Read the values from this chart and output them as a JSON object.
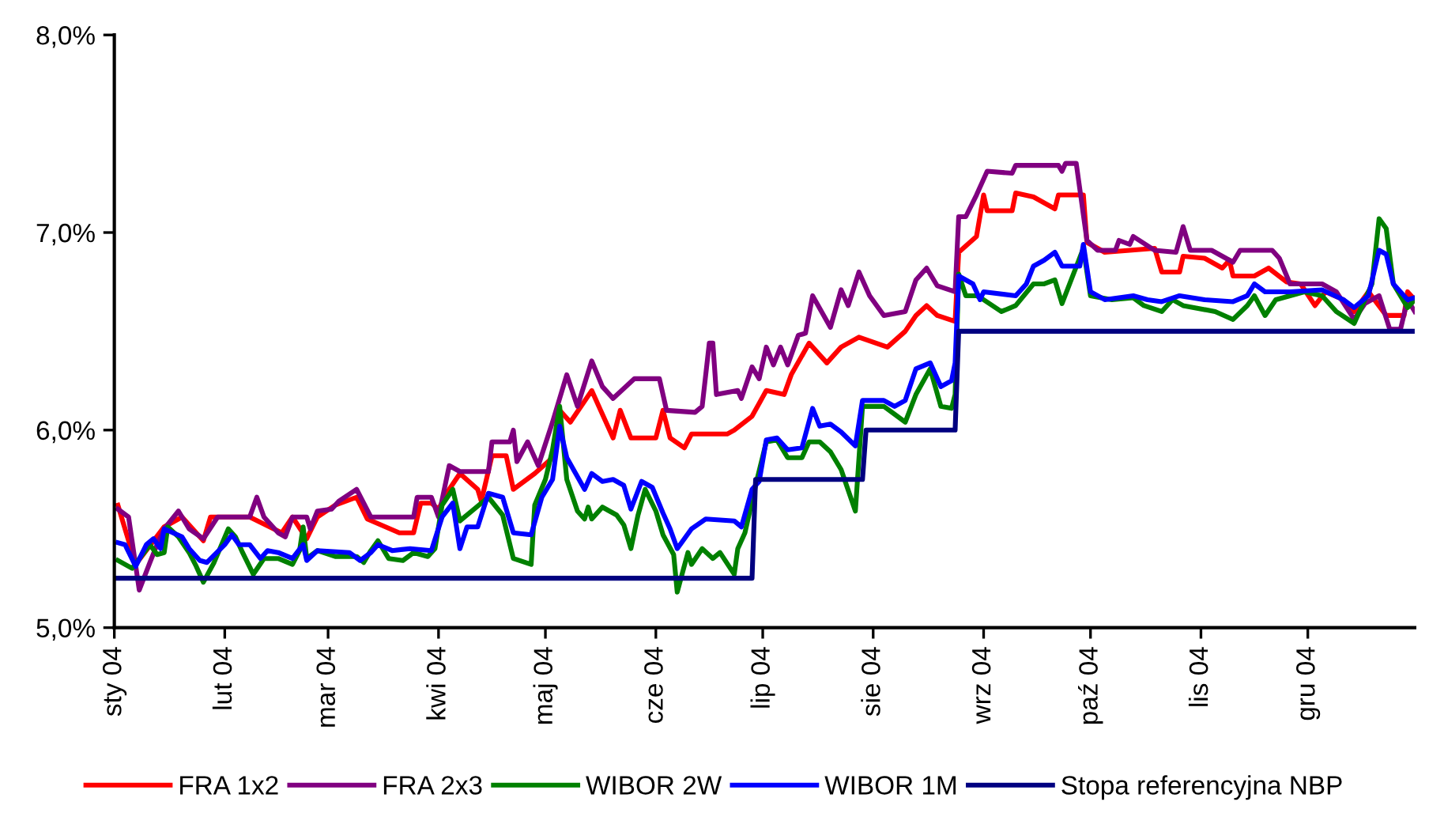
{
  "chart_data": {
    "type": "line",
    "legend": "bottom",
    "line_style": "solid",
    "grid": false,
    "ylim": [
      5.0,
      8.0
    ],
    "yticks": [
      {
        "value": 5.0,
        "label": "5,0%"
      },
      {
        "value": 6.0,
        "label": "6,0%"
      },
      {
        "value": 7.0,
        "label": "7,0%"
      },
      {
        "value": 8.0,
        "label": "8,0%"
      }
    ],
    "xlim": [
      "2004-01-01",
      "2004-12-31"
    ],
    "xticks": [
      {
        "value": "2004-01-01",
        "label": "sty 04"
      },
      {
        "value": "2004-02-01",
        "label": "lut 04"
      },
      {
        "value": "2004-03-01",
        "label": "mar 04"
      },
      {
        "value": "2004-04-01",
        "label": "kwi 04"
      },
      {
        "value": "2004-05-01",
        "label": "maj 04"
      },
      {
        "value": "2004-06-01",
        "label": "cze 04"
      },
      {
        "value": "2004-07-01",
        "label": "lip 04"
      },
      {
        "value": "2004-08-01",
        "label": "sie 04"
      },
      {
        "value": "2004-09-01",
        "label": "wrz 04"
      },
      {
        "value": "2004-10-01",
        "label": "paź 04"
      },
      {
        "value": "2004-11-01",
        "label": "lis 04"
      },
      {
        "value": "2004-12-01",
        "label": "gru 04"
      }
    ],
    "series": [
      {
        "name": "FRA 1x2",
        "color": "#ff0000",
        "x": [
          "2004-01-02",
          "2004-01-07",
          "2004-01-15",
          "2004-01-20",
          "2004-01-26",
          "2004-01-28",
          "2004-02-08",
          "2004-02-17",
          "2004-02-20",
          "2004-02-24",
          "2004-02-27",
          "2004-03-03",
          "2004-03-09",
          "2004-03-12",
          "2004-03-21",
          "2004-03-25",
          "2004-03-27",
          "2004-03-30",
          "2004-04-01",
          "2004-04-04",
          "2004-04-07",
          "2004-04-12",
          "2004-04-13",
          "2004-04-16",
          "2004-04-20",
          "2004-04-22",
          "2004-04-28",
          "2004-05-03",
          "2004-05-05",
          "2004-05-08",
          "2004-05-14",
          "2004-05-20",
          "2004-05-22",
          "2004-05-25",
          "2004-06-01",
          "2004-06-03",
          "2004-06-05",
          "2004-06-09",
          "2004-06-11",
          "2004-06-21",
          "2004-06-23",
          "2004-06-28",
          "2004-07-02",
          "2004-07-07",
          "2004-07-09",
          "2004-07-14",
          "2004-07-19",
          "2004-07-23",
          "2004-07-28",
          "2004-08-05",
          "2004-08-10",
          "2004-08-13",
          "2004-08-16",
          "2004-08-19",
          "2004-08-24",
          "2004-08-25",
          "2004-08-30",
          "2004-09-01",
          "2004-09-02",
          "2004-09-09",
          "2004-09-10",
          "2004-09-15",
          "2004-09-21",
          "2004-09-22",
          "2004-09-29",
          "2004-09-30",
          "2004-10-05",
          "2004-10-19",
          "2004-10-21",
          "2004-10-26",
          "2004-10-27",
          "2004-11-02",
          "2004-11-07",
          "2004-11-09",
          "2004-11-10",
          "2004-11-16",
          "2004-11-20",
          "2004-11-25",
          "2004-11-29",
          "2004-12-03",
          "2004-12-06",
          "2004-12-11",
          "2004-12-14",
          "2004-12-18",
          "2004-12-23",
          "2004-12-28",
          "2004-12-29",
          "2004-12-31"
        ],
        "values": [
          5.62,
          5.32,
          5.51,
          5.56,
          5.44,
          5.56,
          5.56,
          5.48,
          5.56,
          5.45,
          5.56,
          5.62,
          5.66,
          5.55,
          5.48,
          5.48,
          5.63,
          5.63,
          5.6,
          5.7,
          5.78,
          5.7,
          5.64,
          5.87,
          5.87,
          5.7,
          5.78,
          5.86,
          6.1,
          6.04,
          6.2,
          5.96,
          6.1,
          5.96,
          5.96,
          6.1,
          5.96,
          5.91,
          5.98,
          5.98,
          6.0,
          6.07,
          6.2,
          6.18,
          6.28,
          6.44,
          6.34,
          6.42,
          6.47,
          6.42,
          6.5,
          6.58,
          6.63,
          6.58,
          6.55,
          6.9,
          6.98,
          7.19,
          7.11,
          7.11,
          7.2,
          7.18,
          7.12,
          7.19,
          7.19,
          6.95,
          6.9,
          6.92,
          6.8,
          6.8,
          6.88,
          6.87,
          6.82,
          6.86,
          6.78,
          6.78,
          6.82,
          6.75,
          6.74,
          6.63,
          6.7,
          6.66,
          6.6,
          6.7,
          6.58,
          6.58,
          6.7,
          6.66
        ]
      },
      {
        "name": "FRA 2x3",
        "color": "#800080",
        "x": [
          "2004-01-02",
          "2004-01-05",
          "2004-01-08",
          "2004-01-11",
          "2004-01-13",
          "2004-01-15",
          "2004-01-19",
          "2004-01-22",
          "2004-01-26",
          "2004-01-30",
          "2004-02-08",
          "2004-02-10",
          "2004-02-12",
          "2004-02-16",
          "2004-02-18",
          "2004-02-20",
          "2004-02-24",
          "2004-02-25",
          "2004-02-27",
          "2004-03-02",
          "2004-03-04",
          "2004-03-09",
          "2004-03-13",
          "2004-03-25",
          "2004-03-26",
          "2004-03-30",
          "2004-04-01",
          "2004-04-04",
          "2004-04-07",
          "2004-04-15",
          "2004-04-16",
          "2004-04-21",
          "2004-04-22",
          "2004-04-23",
          "2004-04-26",
          "2004-04-29",
          "2004-05-03",
          "2004-05-07",
          "2004-05-10",
          "2004-05-14",
          "2004-05-17",
          "2004-05-20",
          "2004-05-26",
          "2004-06-02",
          "2004-06-04",
          "2004-06-12",
          "2004-06-14",
          "2004-06-16",
          "2004-06-17",
          "2004-06-18",
          "2004-06-24",
          "2004-06-25",
          "2004-06-28",
          "2004-06-30",
          "2004-07-02",
          "2004-07-04",
          "2004-07-06",
          "2004-07-08",
          "2004-07-11",
          "2004-07-13",
          "2004-07-15",
          "2004-07-20",
          "2004-07-23",
          "2004-07-25",
          "2004-07-28",
          "2004-07-31",
          "2004-08-04",
          "2004-08-10",
          "2004-08-13",
          "2004-08-16",
          "2004-08-19",
          "2004-08-24",
          "2004-08-25",
          "2004-08-27",
          "2004-08-30",
          "2004-09-02",
          "2004-09-09",
          "2004-09-10",
          "2004-09-22",
          "2004-09-23",
          "2004-09-24",
          "2004-09-27",
          "2004-09-30",
          "2004-10-03",
          "2004-10-08",
          "2004-10-09",
          "2004-10-12",
          "2004-10-13",
          "2004-10-19",
          "2004-10-25",
          "2004-10-27",
          "2004-10-29",
          "2004-11-04",
          "2004-11-08",
          "2004-11-10",
          "2004-11-12",
          "2004-11-21",
          "2004-11-23",
          "2004-11-26",
          "2004-12-05",
          "2004-12-09",
          "2004-12-14",
          "2004-12-17",
          "2004-12-21",
          "2004-12-24",
          "2004-12-27",
          "2004-12-29",
          "2004-12-31"
        ],
        "values": [
          5.6,
          5.56,
          5.19,
          5.33,
          5.42,
          5.5,
          5.59,
          5.5,
          5.45,
          5.56,
          5.56,
          5.66,
          5.56,
          5.48,
          5.46,
          5.56,
          5.56,
          5.5,
          5.59,
          5.6,
          5.64,
          5.7,
          5.56,
          5.56,
          5.66,
          5.66,
          5.56,
          5.82,
          5.79,
          5.79,
          5.94,
          5.94,
          6.0,
          5.84,
          5.94,
          5.82,
          6.04,
          6.28,
          6.12,
          6.35,
          6.22,
          6.16,
          6.26,
          6.26,
          6.1,
          6.09,
          6.12,
          6.44,
          6.44,
          6.18,
          6.2,
          6.16,
          6.32,
          6.26,
          6.42,
          6.33,
          6.42,
          6.33,
          6.48,
          6.49,
          6.68,
          6.52,
          6.71,
          6.63,
          6.8,
          6.68,
          6.58,
          6.6,
          6.76,
          6.82,
          6.73,
          6.7,
          7.08,
          7.08,
          7.19,
          7.31,
          7.3,
          7.34,
          7.34,
          7.31,
          7.35,
          7.35,
          6.96,
          6.91,
          6.91,
          6.96,
          6.94,
          6.98,
          6.91,
          6.9,
          7.03,
          6.91,
          6.91,
          6.87,
          6.85,
          6.91,
          6.91,
          6.87,
          6.74,
          6.74,
          6.7,
          6.56,
          6.64,
          6.68,
          6.51,
          6.51,
          6.66,
          6.6
        ]
      },
      {
        "name": "WIBOR 2W",
        "color": "#008000",
        "x": [
          "2004-01-02",
          "2004-01-06",
          "2004-01-11",
          "2004-01-13",
          "2004-01-15",
          "2004-01-16",
          "2004-01-19",
          "2004-01-22",
          "2004-01-24",
          "2004-01-26",
          "2004-01-29",
          "2004-02-02",
          "2004-02-04",
          "2004-02-06",
          "2004-02-09",
          "2004-02-12",
          "2004-02-16",
          "2004-02-20",
          "2004-02-22",
          "2004-02-23",
          "2004-02-24",
          "2004-02-27",
          "2004-03-03",
          "2004-03-09",
          "2004-03-11",
          "2004-03-13",
          "2004-03-15",
          "2004-03-18",
          "2004-03-22",
          "2004-03-25",
          "2004-03-29",
          "2004-03-31",
          "2004-04-02",
          "2004-04-05",
          "2004-04-07",
          "2004-04-15",
          "2004-04-19",
          "2004-04-22",
          "2004-04-27",
          "2004-04-28",
          "2004-05-01",
          "2004-05-03",
          "2004-05-05",
          "2004-05-07",
          "2004-05-10",
          "2004-05-12",
          "2004-05-13",
          "2004-05-14",
          "2004-05-17",
          "2004-05-21",
          "2004-05-23",
          "2004-05-25",
          "2004-05-27",
          "2004-05-29",
          "2004-06-01",
          "2004-06-03",
          "2004-06-06",
          "2004-06-07",
          "2004-06-10",
          "2004-06-11",
          "2004-06-14",
          "2004-06-17",
          "2004-06-19",
          "2004-06-23",
          "2004-06-24",
          "2004-06-26",
          "2004-06-29",
          "2004-07-02",
          "2004-07-05",
          "2004-07-08",
          "2004-07-12",
          "2004-07-14",
          "2004-07-17",
          "2004-07-20",
          "2004-07-23",
          "2004-07-27",
          "2004-07-29",
          "2004-08-04",
          "2004-08-07",
          "2004-08-10",
          "2004-08-13",
          "2004-08-17",
          "2004-08-20",
          "2004-08-23",
          "2004-08-24",
          "2004-08-25",
          "2004-08-27",
          "2004-08-30",
          "2004-09-01",
          "2004-09-06",
          "2004-09-10",
          "2004-09-15",
          "2004-09-18",
          "2004-09-21",
          "2004-09-23",
          "2004-09-29",
          "2004-10-01",
          "2004-10-07",
          "2004-10-13",
          "2004-10-16",
          "2004-10-21",
          "2004-10-24",
          "2004-10-27",
          "2004-11-05",
          "2004-11-10",
          "2004-11-14",
          "2004-11-16",
          "2004-11-19",
          "2004-11-22",
          "2004-11-30",
          "2004-12-05",
          "2004-12-09",
          "2004-12-14",
          "2004-12-19",
          "2004-12-21",
          "2004-12-23",
          "2004-12-25",
          "2004-12-29",
          "2004-12-31"
        ],
        "values": [
          5.34,
          5.3,
          5.42,
          5.37,
          5.38,
          5.51,
          5.46,
          5.38,
          5.31,
          5.23,
          5.33,
          5.5,
          5.46,
          5.38,
          5.27,
          5.35,
          5.35,
          5.32,
          5.39,
          5.51,
          5.35,
          5.39,
          5.36,
          5.36,
          5.33,
          5.39,
          5.44,
          5.35,
          5.34,
          5.38,
          5.36,
          5.4,
          5.62,
          5.7,
          5.54,
          5.66,
          5.57,
          5.35,
          5.32,
          5.62,
          5.75,
          5.9,
          6.12,
          5.75,
          5.59,
          5.55,
          5.61,
          5.55,
          5.61,
          5.57,
          5.52,
          5.4,
          5.57,
          5.7,
          5.59,
          5.47,
          5.37,
          5.18,
          5.38,
          5.32,
          5.4,
          5.35,
          5.38,
          5.27,
          5.4,
          5.48,
          5.72,
          5.94,
          5.95,
          5.86,
          5.86,
          5.94,
          5.94,
          5.89,
          5.8,
          5.59,
          6.12,
          6.12,
          6.08,
          6.04,
          6.18,
          6.31,
          6.12,
          6.11,
          6.18,
          6.79,
          6.68,
          6.68,
          6.66,
          6.6,
          6.63,
          6.74,
          6.74,
          6.76,
          6.64,
          6.92,
          6.68,
          6.66,
          6.67,
          6.63,
          6.6,
          6.66,
          6.63,
          6.6,
          6.56,
          6.63,
          6.68,
          6.58,
          6.66,
          6.7,
          6.68,
          6.6,
          6.54,
          6.74,
          7.07,
          7.02,
          6.74,
          6.62,
          6.66
        ]
      },
      {
        "name": "WIBOR 1M",
        "color": "#0000ff",
        "x": [
          "2004-01-02",
          "2004-01-04",
          "2004-01-07",
          "2004-01-10",
          "2004-01-12",
          "2004-01-14",
          "2004-01-15",
          "2004-01-20",
          "2004-01-22",
          "2004-01-25",
          "2004-01-27",
          "2004-02-01",
          "2004-02-03",
          "2004-02-05",
          "2004-02-08",
          "2004-02-11",
          "2004-02-13",
          "2004-02-16",
          "2004-02-20",
          "2004-02-23",
          "2004-02-24",
          "2004-02-27",
          "2004-03-07",
          "2004-03-10",
          "2004-03-13",
          "2004-03-15",
          "2004-03-19",
          "2004-03-24",
          "2004-03-30",
          "2004-04-02",
          "2004-04-05",
          "2004-04-07",
          "2004-04-09",
          "2004-04-12",
          "2004-04-15",
          "2004-04-19",
          "2004-04-22",
          "2004-04-27",
          "2004-04-30",
          "2004-05-03",
          "2004-05-05",
          "2004-05-07",
          "2004-05-12",
          "2004-05-14",
          "2004-05-17",
          "2004-05-20",
          "2004-05-23",
          "2004-05-25",
          "2004-05-28",
          "2004-05-31",
          "2004-06-03",
          "2004-06-05",
          "2004-06-07",
          "2004-06-11",
          "2004-06-15",
          "2004-06-23",
          "2004-06-25",
          "2004-06-28",
          "2004-06-30",
          "2004-07-02",
          "2004-07-05",
          "2004-07-08",
          "2004-07-12",
          "2004-07-15",
          "2004-07-17",
          "2004-07-20",
          "2004-07-23",
          "2004-07-27",
          "2004-07-29",
          "2004-08-04",
          "2004-08-07",
          "2004-08-10",
          "2004-08-13",
          "2004-08-17",
          "2004-08-20",
          "2004-08-23",
          "2004-08-24",
          "2004-08-25",
          "2004-08-29",
          "2004-08-31",
          "2004-09-01",
          "2004-09-10",
          "2004-09-13",
          "2004-09-15",
          "2004-09-18",
          "2004-09-21",
          "2004-09-23",
          "2004-09-28",
          "2004-09-29",
          "2004-10-01",
          "2004-10-05",
          "2004-10-13",
          "2004-10-17",
          "2004-10-21",
          "2004-10-26",
          "2004-11-02",
          "2004-11-10",
          "2004-11-14",
          "2004-11-16",
          "2004-11-19",
          "2004-11-26",
          "2004-12-05",
          "2004-12-11",
          "2004-12-14",
          "2004-12-18",
          "2004-12-21",
          "2004-12-23",
          "2004-12-25",
          "2004-12-29",
          "2004-12-31"
        ],
        "values": [
          5.43,
          5.42,
          5.31,
          5.42,
          5.45,
          5.4,
          5.5,
          5.46,
          5.4,
          5.34,
          5.33,
          5.42,
          5.47,
          5.42,
          5.42,
          5.35,
          5.39,
          5.38,
          5.35,
          5.42,
          5.34,
          5.39,
          5.38,
          5.34,
          5.38,
          5.42,
          5.39,
          5.4,
          5.39,
          5.56,
          5.63,
          5.4,
          5.51,
          5.51,
          5.68,
          5.66,
          5.48,
          5.47,
          5.66,
          5.75,
          6.02,
          5.86,
          5.7,
          5.78,
          5.74,
          5.75,
          5.72,
          5.6,
          5.74,
          5.71,
          5.58,
          5.5,
          5.4,
          5.5,
          5.55,
          5.54,
          5.51,
          5.7,
          5.74,
          5.95,
          5.96,
          5.9,
          5.91,
          6.11,
          6.02,
          6.03,
          5.99,
          5.92,
          6.15,
          6.15,
          6.12,
          6.15,
          6.31,
          6.34,
          6.22,
          6.25,
          6.34,
          6.78,
          6.74,
          6.66,
          6.7,
          6.68,
          6.74,
          6.83,
          6.86,
          6.9,
          6.83,
          6.83,
          6.94,
          6.7,
          6.66,
          6.68,
          6.66,
          6.65,
          6.68,
          6.66,
          6.65,
          6.68,
          6.74,
          6.7,
          6.7,
          6.71,
          6.66,
          6.62,
          6.68,
          6.91,
          6.89,
          6.74,
          6.66,
          6.67
        ]
      },
      {
        "name": "Stopa referencyjna NBP",
        "color": "#000080",
        "x": [
          "2004-01-01",
          "2004-06-28",
          "2004-06-29",
          "2004-07-29",
          "2004-07-30",
          "2004-08-24",
          "2004-08-25",
          "2004-12-31"
        ],
        "values": [
          5.25,
          5.25,
          5.75,
          5.75,
          6.0,
          6.0,
          6.5,
          6.5
        ]
      }
    ]
  }
}
